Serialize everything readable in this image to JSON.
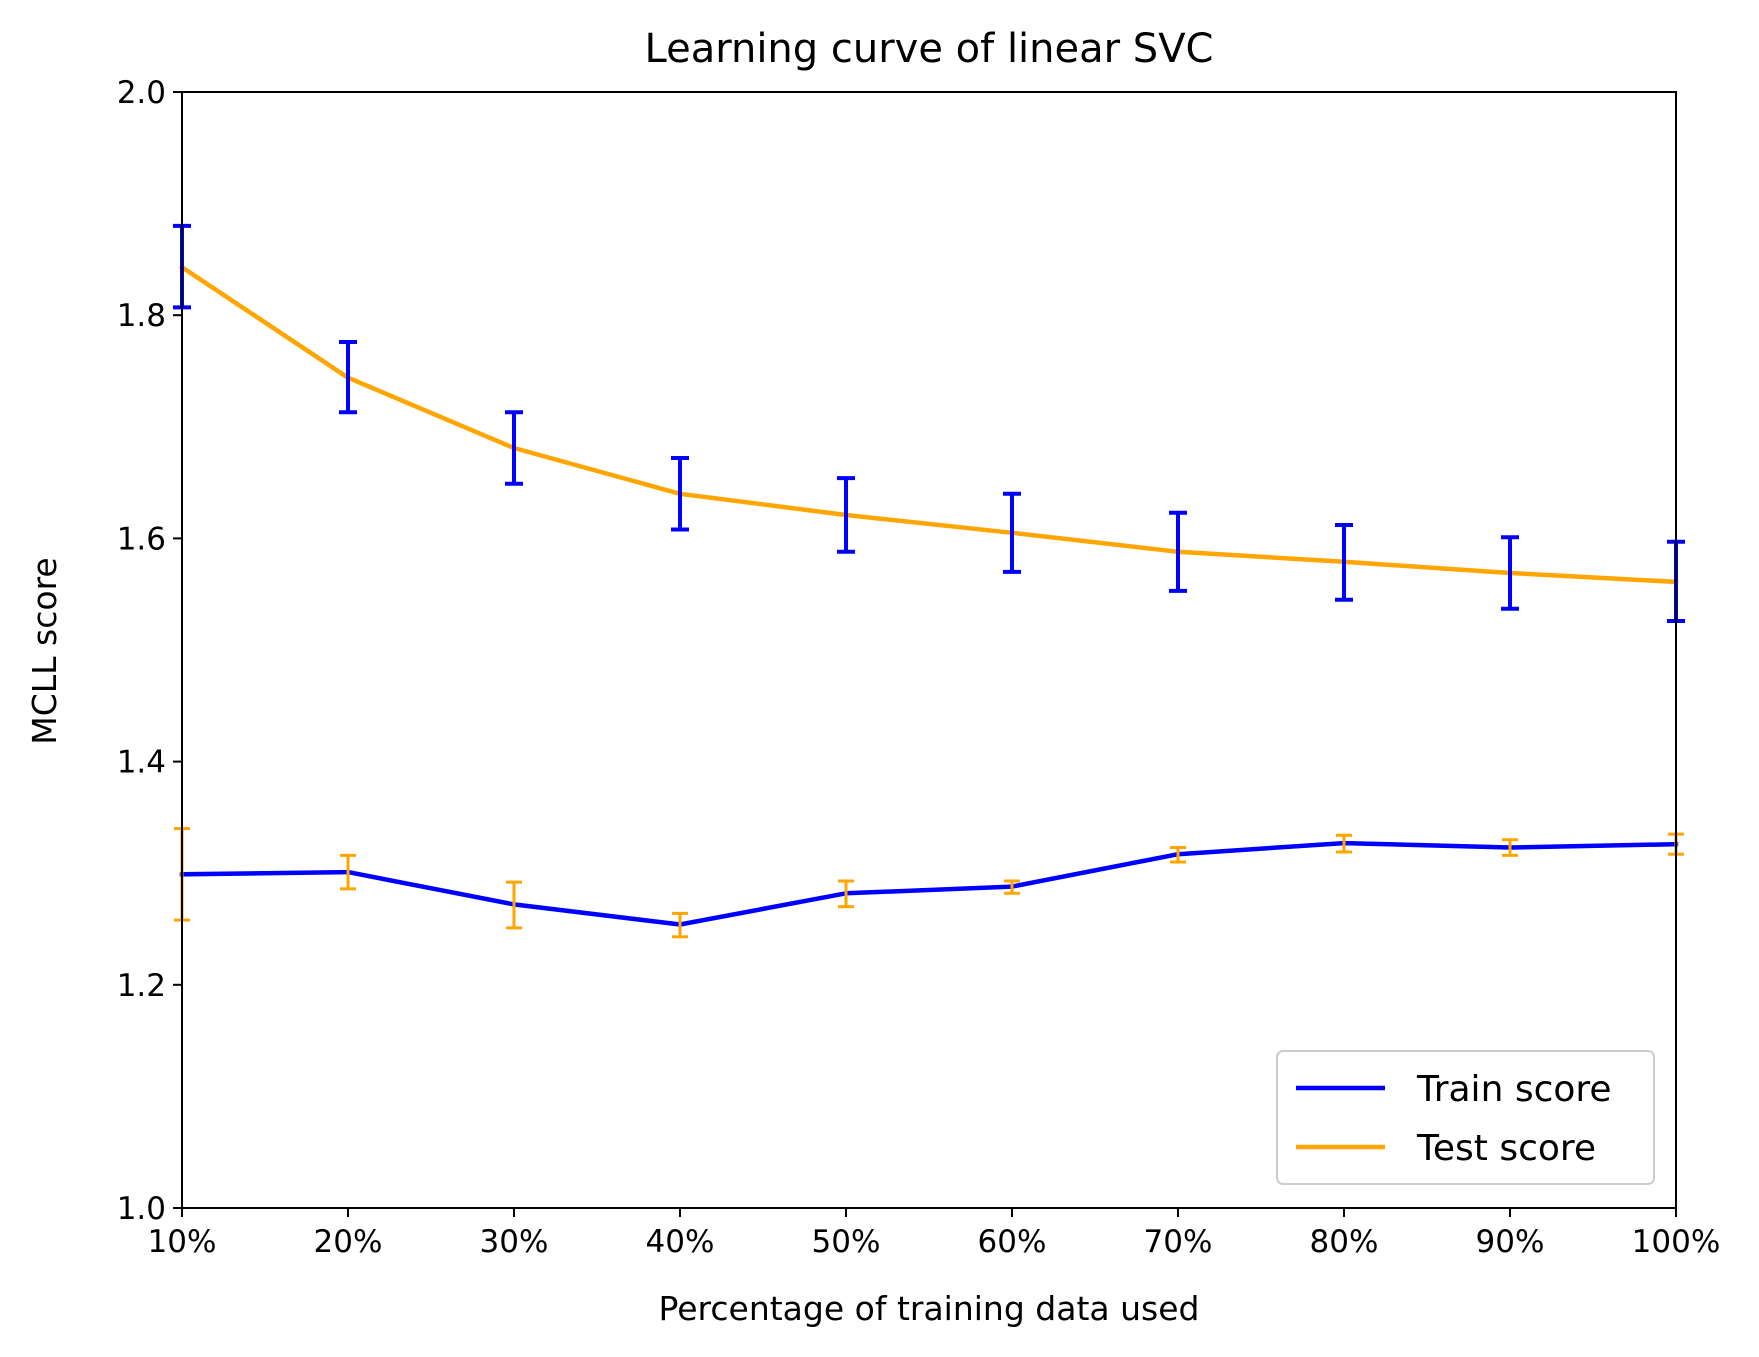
{
  "chart_data": {
    "type": "line",
    "title": "Learning curve of linear SVC",
    "xlabel": "Percentage of training data used",
    "ylabel": "MCLL score",
    "categories": [
      "10%",
      "20%",
      "30%",
      "40%",
      "50%",
      "60%",
      "70%",
      "80%",
      "90%",
      "100%"
    ],
    "x": [
      10,
      20,
      30,
      40,
      50,
      60,
      70,
      80,
      90,
      100
    ],
    "xlim": [
      10,
      100
    ],
    "ylim": [
      1.0,
      2.0
    ],
    "yticks": [
      "1.0",
      "1.2",
      "1.4",
      "1.6",
      "1.8",
      "2.0"
    ],
    "grid": false,
    "legend_position": "lower-right",
    "series": [
      {
        "name": "Train score",
        "color": "#0000ff",
        "values": [
          1.299,
          1.301,
          1.272,
          1.254,
          1.282,
          1.288,
          1.317,
          1.327,
          1.323,
          1.326
        ]
      },
      {
        "name": "Test score",
        "color": "#ffa500",
        "values": [
          1.843,
          1.744,
          1.681,
          1.64,
          1.621,
          1.605,
          1.588,
          1.579,
          1.569,
          1.561
        ]
      }
    ],
    "error_bars": [
      {
        "color": "#ffa500",
        "center": [
          1.299,
          1.301,
          1.272,
          1.254,
          1.282,
          1.288,
          1.317,
          1.327,
          1.323,
          1.326
        ],
        "low": [
          1.258,
          1.286,
          1.251,
          1.243,
          1.27,
          1.282,
          1.31,
          1.319,
          1.316,
          1.317
        ],
        "high": [
          1.34,
          1.316,
          1.292,
          1.264,
          1.293,
          1.293,
          1.323,
          1.334,
          1.33,
          1.335
        ]
      },
      {
        "color": "#0000ff",
        "center": [
          1.843,
          1.744,
          1.681,
          1.64,
          1.621,
          1.605,
          1.588,
          1.579,
          1.569,
          1.561
        ],
        "low": [
          1.807,
          1.713,
          1.649,
          1.608,
          1.588,
          1.57,
          1.553,
          1.545,
          1.537,
          1.526
        ],
        "high": [
          1.88,
          1.776,
          1.713,
          1.672,
          1.654,
          1.64,
          1.623,
          1.612,
          1.601,
          1.597
        ]
      }
    ]
  }
}
